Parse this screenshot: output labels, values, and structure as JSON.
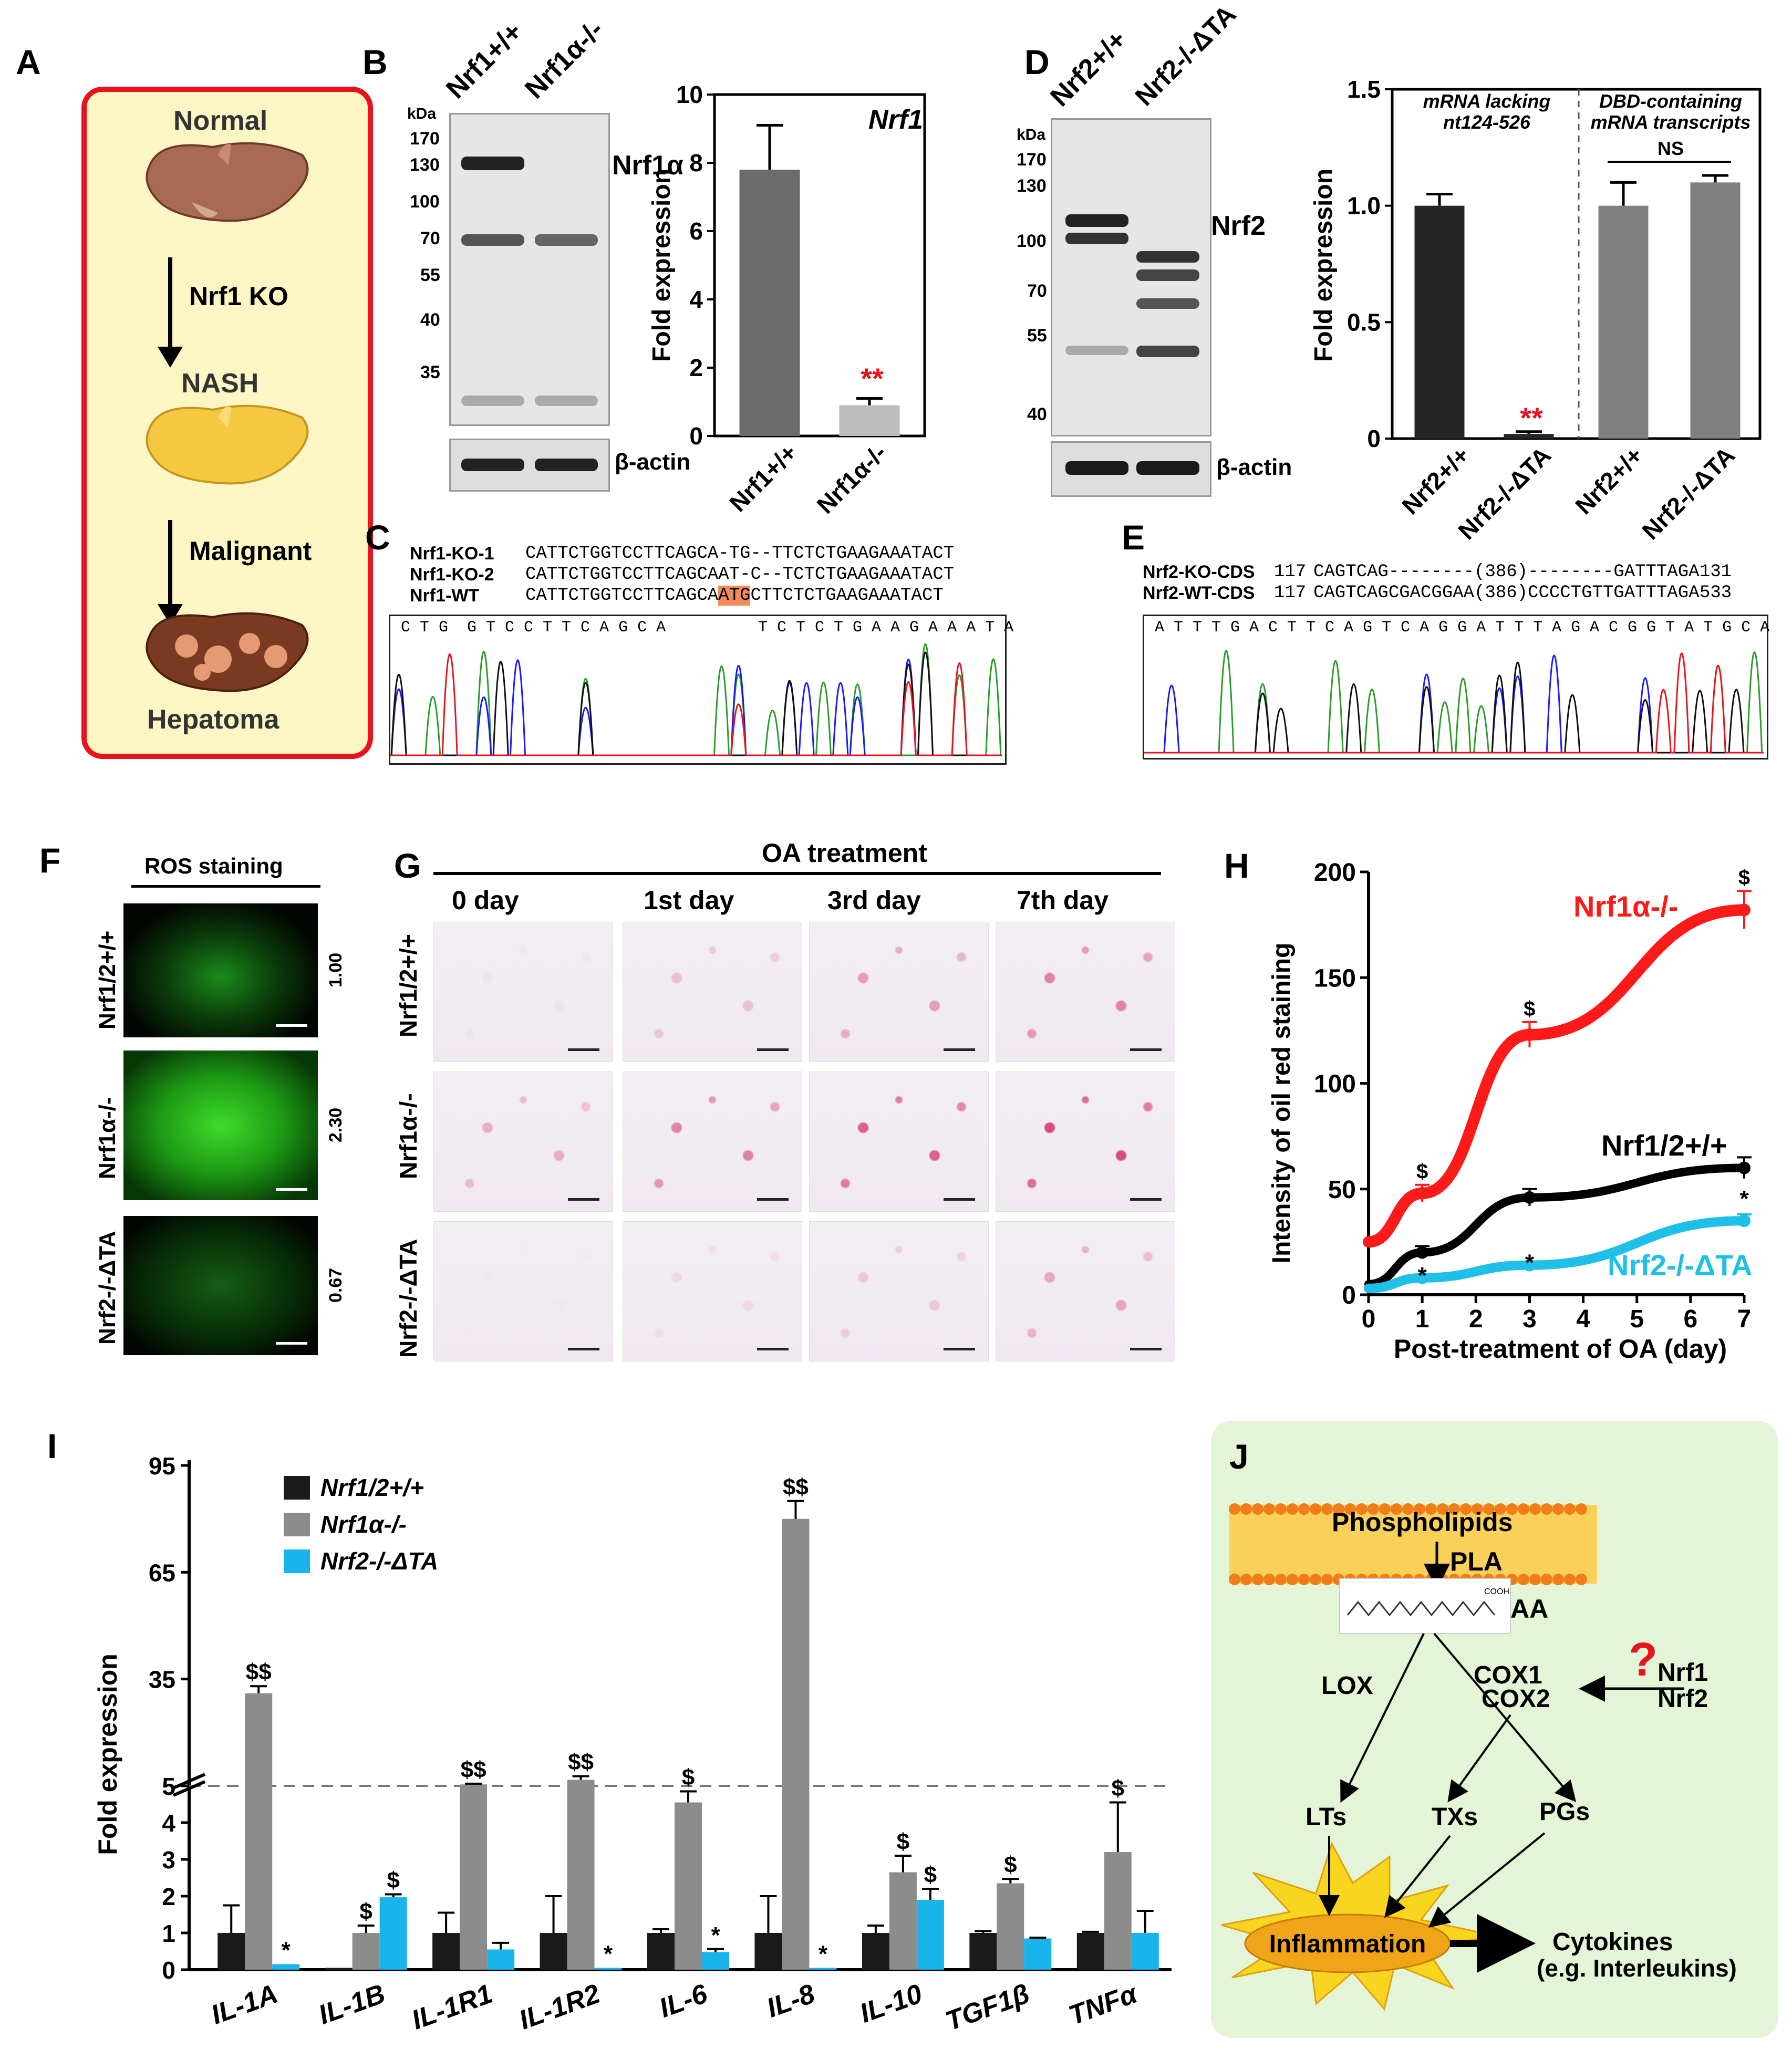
{
  "panels": {
    "A": {
      "label": "A",
      "stages": [
        "Normal",
        "NASH",
        "Hepatoma"
      ],
      "arrows": [
        "Nrf1 KO",
        "Malignant"
      ],
      "colors": {
        "border": "#e8141d",
        "background": "#fcf5c4",
        "normal_liver": "#a86a52",
        "nash_liver": "#f5c842",
        "hepatoma_liver": "#7a3a22",
        "tumor": "#e59a74"
      }
    },
    "B": {
      "label": "B",
      "lanes": [
        "Nrf1+/+",
        "Nrf1α-/-"
      ],
      "kda_label": "kDa",
      "markers": [
        "170",
        "130",
        "100",
        "70",
        "55",
        "40",
        "35"
      ],
      "band_label": "Nrf1α",
      "loading": "β-actin",
      "chart": {
        "title": "Nrf1",
        "ylabel": "Fold expression",
        "yticks": [
          "0",
          "2",
          "4",
          "6",
          "8",
          "10"
        ],
        "sig": "**"
      }
    },
    "C": {
      "label": "C",
      "rows": [
        {
          "name": "Nrf1-KO-1",
          "seq": "CATTCTGGTCCTTCAGCA-TG--TTCTCTGAAGAAATACT"
        },
        {
          "name": "Nrf1-KO-2",
          "seq": "CATTCTGGTCCTTCAGCAAT-C--TCTCTGAAGAAATACT"
        },
        {
          "name": "Nrf1-WT",
          "seq_pre": "CATTCTGGTCCTTCAGCA",
          "seq_hl": "ATG",
          "seq_post": "CTTCTCTGAAGAAATACT"
        }
      ],
      "trace_bases_1": "C T G  G T C C T T C A G C A",
      "trace_bases_2": "T C T C T G A A G A A A T A"
    },
    "D": {
      "label": "D",
      "lanes": [
        "Nrf2+/+",
        "Nrf2-/-ΔTA"
      ],
      "kda_label": "kDa",
      "markers": [
        "170",
        "130",
        "100",
        "70",
        "55",
        "40"
      ],
      "band_label": "Nrf2",
      "loading": "β-actin",
      "chart": {
        "ylabel": "Fold expression",
        "yticks": [
          "0",
          "0.5",
          "1.0",
          "1.5"
        ],
        "left_note_1": "mRNA lacking",
        "left_note_2": "nt124-526",
        "right_note_1": "DBD-containing",
        "right_note_2": "mRNA transcripts",
        "ns": "NS",
        "sig": "**",
        "xlabels": [
          "Nrf2+/+",
          "Nrf2-/-ΔTA",
          "Nrf2+/+",
          "Nrf2-/-ΔTA"
        ]
      }
    },
    "E": {
      "label": "E",
      "rows": [
        {
          "name": "Nrf2-KO-CDS",
          "start": "117",
          "seq": "CAGTCAG--------(386)--------GATTTAGA",
          "end": "131"
        },
        {
          "name": "Nrf2-WT-CDS",
          "start": "117",
          "seq": "CAGTCAGCGACGGAA(386)CCCCTGTTGATTTAGA",
          "end": "533"
        }
      ],
      "trace_bases": "A T T T G A C T T C A G T C A G G A T T T A G A C G G T A T G C A"
    },
    "F": {
      "label": "F",
      "title": "ROS staining",
      "rows": [
        {
          "name": "Nrf1/2+/+",
          "value": "1.00"
        },
        {
          "name": "Nrf1α-/-",
          "value": "2.30"
        },
        {
          "name": "Nrf2-/-ΔTA",
          "value": "0.67"
        }
      ]
    },
    "G": {
      "label": "G",
      "title": "OA treatment",
      "columns": [
        "0 day",
        "1st day",
        "3rd day",
        "7th day"
      ],
      "rows": [
        "Nrf1/2+/+",
        "Nrf1α-/-",
        "Nrf2-/-ΔTA"
      ]
    },
    "H": {
      "label": "H",
      "series_labels": [
        "Nrf1α-/-",
        "Nrf1/2+/+",
        "Nrf2-/-ΔTA"
      ],
      "dollar": "$",
      "star": "*"
    },
    "I": {
      "label": "I",
      "legend": [
        "Nrf1/2+/+",
        "Nrf1α-/-",
        "Nrf2-/-ΔTA"
      ],
      "ylabel": "Fold expression",
      "yticks_low": [
        "0",
        "1",
        "2",
        "3",
        "4",
        "5"
      ],
      "yticks_high": [
        "35",
        "65",
        "95"
      ],
      "annotations": [
        {
          "cat": 0,
          "series": 1,
          "text": "$$"
        },
        {
          "cat": 0,
          "series": 2,
          "text": "*"
        },
        {
          "cat": 1,
          "series": 1,
          "text": "$"
        },
        {
          "cat": 1,
          "series": 2,
          "text": "$"
        },
        {
          "cat": 2,
          "series": 1,
          "text": "$$"
        },
        {
          "cat": 3,
          "series": 1,
          "text": "$$"
        },
        {
          "cat": 3,
          "series": 2,
          "text": "*"
        },
        {
          "cat": 4,
          "series": 1,
          "text": "$"
        },
        {
          "cat": 4,
          "series": 2,
          "text": "*"
        },
        {
          "cat": 5,
          "series": 1,
          "text": "$$"
        },
        {
          "cat": 5,
          "series": 2,
          "text": "*"
        },
        {
          "cat": 6,
          "series": 1,
          "text": "$"
        },
        {
          "cat": 6,
          "series": 2,
          "text": "$"
        },
        {
          "cat": 7,
          "series": 1,
          "text": "$"
        },
        {
          "cat": 8,
          "series": 1,
          "text": "$"
        }
      ]
    },
    "J": {
      "label": "J",
      "nodes": {
        "phospholipids": "Phospholipids",
        "pla": "PLA",
        "aa": "AA",
        "cooh": "COOH",
        "lox": "LOX",
        "cox1": "COX1",
        "cox2": "COX2",
        "question": "?",
        "nrf1": "Nrf1",
        "nrf2": "Nrf2",
        "lts": "LTs",
        "txs": "TXs",
        "pgs": "PGs",
        "inflammation": "Inflammation",
        "cytokines": "Cytokines",
        "cytokines_eg": "(e.g. Interleukins)"
      },
      "colors": {
        "background": "#e3f4d7",
        "membrane": "#f07d1a",
        "burst": "#f8d51e",
        "ellipse": "#f0a418",
        "question": "#e8141d"
      }
    }
  },
  "chart_data": [
    {
      "id": "B-bar",
      "type": "bar",
      "title": "Nrf1",
      "ylabel": "Fold expression",
      "ylim": [
        0,
        10
      ],
      "categories": [
        "Nrf1+/+",
        "Nrf1α-/-"
      ],
      "values": [
        7.8,
        0.9
      ],
      "errors": [
        1.3,
        0.2
      ],
      "colors": [
        "#6b6b6b",
        "#bdbdbd"
      ]
    },
    {
      "id": "D-bar",
      "type": "bar",
      "ylabel": "Fold expression",
      "ylim": [
        0,
        1.5
      ],
      "categories": [
        "Nrf2+/+",
        "Nrf2-/-ΔTA",
        "Nrf2+/+",
        "Nrf2-/-ΔTA"
      ],
      "values": [
        1.0,
        0.02,
        1.0,
        1.1
      ],
      "errors": [
        0.05,
        0.01,
        0.1,
        0.03
      ],
      "colors": [
        "#262626",
        "#262626",
        "#808080",
        "#808080"
      ]
    },
    {
      "id": "H-line",
      "type": "line",
      "ylabel": "Intensity of oil red staining",
      "xlabel": "Post-treatment of OA (day)",
      "xlim": [
        0,
        7
      ],
      "ylim": [
        0,
        200
      ],
      "xticks": [
        0,
        1,
        2,
        3,
        4,
        5,
        6,
        7
      ],
      "yticks": [
        0,
        50,
        100,
        150,
        200
      ],
      "series": [
        {
          "name": "Nrf1α-/-",
          "color": "#ff1a1a",
          "x": [
            0,
            1,
            3,
            7
          ],
          "y": [
            25,
            48,
            123,
            182
          ],
          "err": [
            0,
            4,
            6,
            9
          ]
        },
        {
          "name": "Nrf1/2+/+",
          "color": "#000000",
          "x": [
            0,
            1,
            3,
            7
          ],
          "y": [
            5,
            20,
            46,
            60
          ],
          "err": [
            0,
            3,
            4,
            5
          ]
        },
        {
          "name": "Nrf2-/-ΔTA",
          "color": "#1ec0e8",
          "x": [
            0,
            1,
            3,
            7
          ],
          "y": [
            3,
            8,
            14,
            35
          ],
          "err": [
            0,
            1,
            1,
            3
          ]
        }
      ]
    },
    {
      "id": "I-bar",
      "type": "bar",
      "ylabel": "Fold expression",
      "categories": [
        "IL-1A",
        "IL-1B",
        "IL-1R1",
        "IL-1R2",
        "IL-6",
        "IL-8",
        "IL-10",
        "TGF1β",
        "TNFα"
      ],
      "series": [
        {
          "name": "Nrf1/2+/+",
          "color": "#1a1a1a",
          "values": [
            1,
            0.05,
            1,
            1,
            1,
            1,
            1,
            1,
            1
          ],
          "errors": [
            0.75,
            0,
            0.55,
            1.0,
            0.1,
            1.0,
            0.2,
            0.05,
            0.03
          ]
        },
        {
          "name": "Nrf1α-/-",
          "color": "#8c8c8c",
          "values": [
            31,
            1.0,
            5.4,
            6.7,
            4.55,
            80,
            2.65,
            2.35,
            3.2
          ],
          "errors": [
            2,
            0.2,
            0.2,
            1,
            0.3,
            5,
            0.45,
            0.12,
            1.35
          ]
        },
        {
          "name": "Nrf2-/-ΔTA",
          "color": "#1ab4ec",
          "values": [
            0.15,
            1.97,
            0.55,
            0.05,
            0.48,
            0.05,
            1.9,
            0.85,
            1.0
          ],
          "errors": [
            0,
            0.08,
            0.18,
            0,
            0.08,
            0,
            0.3,
            0.02,
            0.6
          ]
        }
      ]
    }
  ]
}
